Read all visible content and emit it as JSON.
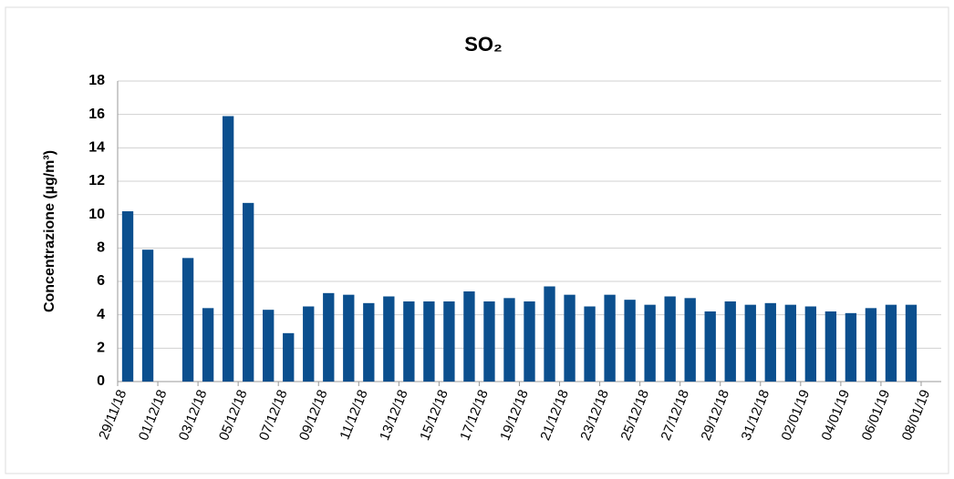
{
  "chart_data": {
    "type": "bar",
    "title": "SO₂",
    "y_label": "Concentrazione (µg/m³)",
    "categories": [
      "29/11/18",
      null,
      "01/12/18",
      null,
      "03/12/18",
      null,
      "05/12/18",
      null,
      "07/12/18",
      null,
      "09/12/18",
      null,
      "11/12/18",
      null,
      "13/12/18",
      null,
      "15/12/18",
      null,
      "17/12/18",
      null,
      "19/12/18",
      null,
      "21/12/18",
      null,
      "23/12/18",
      null,
      "25/12/18",
      null,
      "27/12/18",
      null,
      "29/12/18",
      null,
      "31/12/18",
      null,
      "02/01/19",
      null,
      "04/01/19",
      null,
      "06/01/19",
      null,
      "08/01/19"
    ],
    "values": [
      10.2,
      7.9,
      null,
      7.4,
      4.4,
      15.9,
      10.7,
      4.3,
      2.9,
      4.5,
      5.3,
      5.2,
      4.7,
      5.1,
      4.8,
      4.8,
      4.8,
      5.4,
      4.8,
      5.0,
      4.8,
      5.7,
      5.2,
      4.5,
      5.2,
      4.9,
      4.6,
      5.1,
      5.0,
      4.2,
      4.8,
      4.6,
      4.7,
      4.6,
      4.5,
      4.2,
      4.1,
      4.4,
      4.6,
      4.6,
      null
    ],
    "color": "#0b4f8e",
    "ylim": [
      0,
      18
    ],
    "yticks": [
      0,
      2,
      4,
      6,
      8,
      10,
      12,
      14,
      16,
      18
    ],
    "grid": true
  }
}
